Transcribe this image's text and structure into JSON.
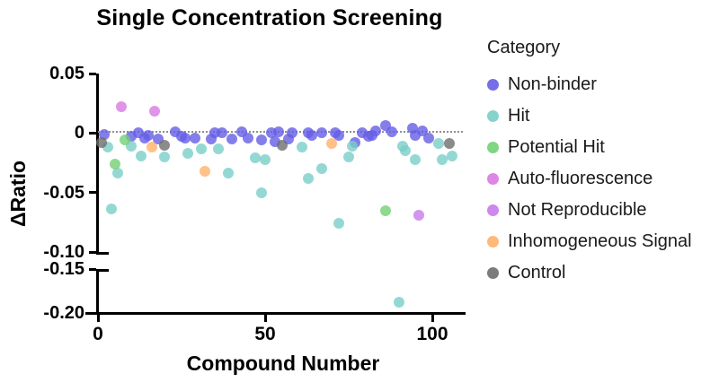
{
  "chart_data": {
    "type": "scatter",
    "title": "Single Concentration Screening",
    "xlabel": "Compound Number",
    "ylabel": "ΔRatio",
    "x_axis": {
      "min": 0,
      "max": 110,
      "tick_values": [
        0,
        50,
        100
      ],
      "tick_labels": [
        "0",
        "50",
        "100"
      ]
    },
    "y_axis": {
      "tick_values": [
        0.05,
        0,
        -0.05,
        -0.1,
        -0.15,
        -0.2
      ],
      "tick_labels": [
        "0.05",
        "0",
        "-0.05",
        "-0.10",
        "-0.15",
        "-0.20"
      ],
      "axis_break": {
        "between": [
          -0.1,
          -0.15
        ]
      },
      "grid": false
    },
    "zero_line_value": 0,
    "legend": {
      "title": "Category",
      "position": "right"
    },
    "series": [
      {
        "name": "Non-binder",
        "color": "#655EE6",
        "points": [
          [
            2,
            -0.001
          ],
          [
            10,
            -0.003
          ],
          [
            12,
            0.0
          ],
          [
            14,
            -0.004
          ],
          [
            15,
            -0.002
          ],
          [
            18,
            -0.005
          ],
          [
            23,
            0.001
          ],
          [
            25,
            -0.003
          ],
          [
            26,
            -0.004
          ],
          [
            29,
            -0.004
          ],
          [
            34,
            -0.005
          ],
          [
            35,
            0.0
          ],
          [
            37,
            0.0
          ],
          [
            40,
            -0.005
          ],
          [
            43,
            0.001
          ],
          [
            45,
            -0.004
          ],
          [
            49,
            -0.006
          ],
          [
            52,
            0.0
          ],
          [
            53,
            -0.007
          ],
          [
            54,
            0.001
          ],
          [
            57,
            -0.005
          ],
          [
            58,
            0.0
          ],
          [
            63,
            0.0
          ],
          [
            64,
            -0.002
          ],
          [
            67,
            0.0
          ],
          [
            71,
            0.0
          ],
          [
            72,
            -0.002
          ],
          [
            77,
            -0.008
          ],
          [
            79,
            0.0
          ],
          [
            81,
            -0.003
          ],
          [
            82,
            -0.002
          ],
          [
            83,
            0.002
          ],
          [
            86,
            0.006
          ],
          [
            88,
            0.001
          ],
          [
            94,
            0.004
          ],
          [
            95,
            -0.002
          ],
          [
            97,
            0.002
          ],
          [
            99,
            -0.004
          ]
        ]
      },
      {
        "name": "Hit",
        "color": "#79CEC8",
        "points": [
          [
            3,
            -0.012
          ],
          [
            4,
            -0.064
          ],
          [
            6,
            -0.034
          ],
          [
            10,
            -0.011
          ],
          [
            13,
            -0.019
          ],
          [
            20,
            -0.02
          ],
          [
            27,
            -0.017
          ],
          [
            31,
            -0.013
          ],
          [
            36,
            -0.013
          ],
          [
            39,
            -0.034
          ],
          [
            47,
            -0.021
          ],
          [
            49,
            -0.05
          ],
          [
            50,
            -0.022
          ],
          [
            61,
            -0.012
          ],
          [
            63,
            -0.038
          ],
          [
            67,
            -0.03
          ],
          [
            72,
            -0.076
          ],
          [
            75,
            -0.02
          ],
          [
            76,
            -0.011
          ],
          [
            90,
            -0.188
          ],
          [
            91,
            -0.011
          ],
          [
            92,
            -0.015
          ],
          [
            95,
            -0.022
          ],
          [
            102,
            -0.009
          ],
          [
            103,
            -0.022
          ],
          [
            106,
            -0.019
          ]
        ]
      },
      {
        "name": "Potential Hit",
        "color": "#74D074",
        "points": [
          [
            5,
            -0.026
          ],
          [
            8,
            -0.006
          ],
          [
            86,
            -0.065
          ]
        ]
      },
      {
        "name": "Auto-fluorescence",
        "color": "#D879E2",
        "points": [
          [
            7,
            0.022
          ],
          [
            17,
            0.018
          ]
        ]
      },
      {
        "name": "Not Reproducible",
        "color": "#C77BEC",
        "points": [
          [
            96,
            -0.069
          ]
        ]
      },
      {
        "name": "Inhomogeneous Signal",
        "color": "#FFB169",
        "points": [
          [
            16,
            -0.012
          ],
          [
            32,
            -0.032
          ],
          [
            70,
            -0.009
          ]
        ]
      },
      {
        "name": "Control",
        "color": "#6E6E6E",
        "points": [
          [
            1,
            -0.008
          ],
          [
            20,
            -0.01
          ],
          [
            55,
            -0.01
          ],
          [
            105,
            -0.009
          ]
        ]
      }
    ]
  }
}
